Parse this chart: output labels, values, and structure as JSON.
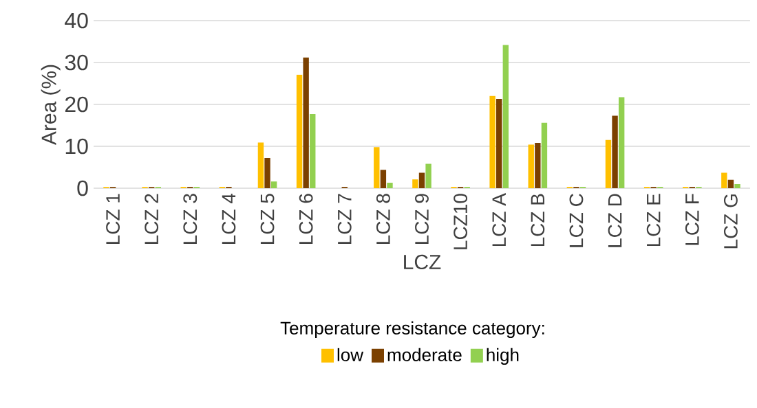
{
  "chart_data": {
    "type": "bar",
    "xlabel": "LCZ",
    "ylabel": "Area (%)",
    "legend_title": "Temperature resistance category:",
    "categories": [
      "LCZ 1",
      "LCZ 2",
      "LCZ 3",
      "LCZ 4",
      "LCZ 5",
      "LCZ 6",
      "LCZ 7",
      "LCZ 8",
      "LCZ 9",
      "LCZ10",
      "LCZ A",
      "LCZ B",
      "LCZ C",
      "LCZ D",
      "LCZ E",
      "LCZ F",
      "LCZ G"
    ],
    "series": [
      {
        "name": "low",
        "color": "#ffc000",
        "values": [
          0.3,
          0.3,
          0.3,
          0.3,
          10.9,
          27.1,
          0,
          9.8,
          2.1,
          0.3,
          22.0,
          10.4,
          0.3,
          11.5,
          0.3,
          0.3,
          3.7
        ]
      },
      {
        "name": "moderate",
        "color": "#7b4000",
        "values": [
          0.3,
          0.3,
          0.3,
          0.3,
          7.2,
          31.2,
          0.3,
          4.4,
          3.7,
          0.3,
          21.3,
          10.8,
          0.3,
          17.3,
          0.3,
          0.3,
          2.0
        ]
      },
      {
        "name": "high",
        "color": "#92d050",
        "values": [
          0,
          0.3,
          0.3,
          0,
          1.6,
          17.7,
          0,
          1.3,
          5.8,
          0.3,
          34.2,
          15.6,
          0.3,
          21.7,
          0.3,
          0.3,
          1.0
        ]
      }
    ],
    "ylim": [
      0,
      40
    ],
    "yticks": [
      0,
      10,
      20,
      30,
      40
    ],
    "grid": "y",
    "legend": "bottom"
  }
}
